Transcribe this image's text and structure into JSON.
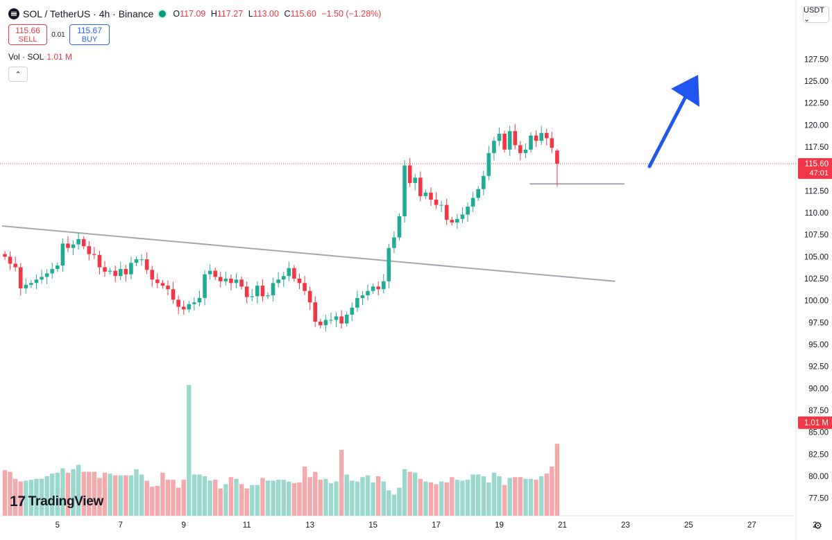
{
  "header": {
    "symbol": "SOL / TetherUS · 4h · Binance",
    "ohlc": [
      {
        "k": "O",
        "v": "117.09"
      },
      {
        "k": "H",
        "v": "117.27"
      },
      {
        "k": "L",
        "v": "113.00"
      },
      {
        "k": "C",
        "v": "115.60"
      }
    ],
    "change": "−1.50 (−1.28%)"
  },
  "trade": {
    "sell_price": "115.66",
    "sell_label": "SELL",
    "spread": "0.01",
    "buy_price": "115.67",
    "buy_label": "BUY"
  },
  "volume_indicator": {
    "label": "Vol · SOL",
    "value": "1.01 M"
  },
  "collapse_symbol": "⌃",
  "currency": "USDT ⌄",
  "logo_text": "TradingView",
  "logo_mark": "17",
  "settings_icon": "⚙",
  "colors": {
    "up": "#22ab94",
    "down": "#f23645",
    "vol_up": "#9ad8ce",
    "vol_down": "#f6a9ad",
    "arrow": "#2155ef"
  },
  "chart_data": {
    "type": "candlestick",
    "y_axis": {
      "ticks": [
        "127.50",
        "125.00",
        "122.50",
        "120.00",
        "117.50",
        "115.00",
        "112.50",
        "110.00",
        "107.50",
        "105.00",
        "102.50",
        "100.00",
        "97.50",
        "95.00",
        "92.50",
        "90.00",
        "87.50",
        "85.00",
        "82.50",
        "80.00",
        "77.50"
      ],
      "range": [
        75.5,
        129.5
      ]
    },
    "x_axis": {
      "ticks": [
        {
          "label": "5",
          "bar": 10
        },
        {
          "label": "7",
          "bar": 22
        },
        {
          "label": "9",
          "bar": 34
        },
        {
          "label": "11",
          "bar": 46
        },
        {
          "label": "13",
          "bar": 58
        },
        {
          "label": "15",
          "bar": 70
        },
        {
          "label": "17",
          "bar": 82
        },
        {
          "label": "19",
          "bar": 94
        },
        {
          "label": "21",
          "bar": 106
        },
        {
          "label": "23",
          "bar": 118
        },
        {
          "label": "25",
          "bar": 130
        },
        {
          "label": "27",
          "bar": 142
        },
        {
          "label": "2",
          "bar": 154
        }
      ]
    },
    "last_price": {
      "value": "115.60",
      "countdown": "47:01"
    },
    "volume_badge": "1.01 M",
    "closes": [
      105.0,
      104.2,
      103.8,
      101.4,
      101.8,
      102.0,
      102.4,
      102.7,
      103.1,
      103.6,
      104.0,
      106.5,
      106.0,
      106.4,
      107.0,
      106.2,
      105.3,
      105.2,
      103.8,
      103.3,
      103.4,
      102.8,
      103.6,
      103.0,
      104.3,
      104.7,
      104.7,
      103.5,
      102.4,
      102.0,
      101.7,
      101.3,
      100.1,
      99.3,
      99.0,
      99.6,
      99.8,
      100.3,
      103.0,
      103.4,
      102.7,
      102.2,
      102.5,
      102.0,
      102.4,
      101.6,
      100.4,
      100.5,
      101.7,
      100.5,
      100.6,
      102.0,
      102.4,
      102.8,
      103.7,
      102.5,
      102.0,
      101.1,
      99.8,
      97.6,
      97.2,
      97.8,
      97.8,
      98.2,
      97.4,
      98.4,
      99.2,
      100.3,
      100.6,
      101.1,
      101.6,
      101.3,
      102.2,
      106.0,
      107.2,
      109.6,
      115.4,
      113.4,
      114.0,
      111.9,
      112.3,
      111.5,
      110.9,
      110.9,
      109.2,
      108.9,
      109.3,
      109.8,
      110.7,
      111.7,
      112.7,
      114.2,
      116.8,
      118.2,
      119.0,
      117.2,
      119.3,
      117.7,
      116.8,
      117.2,
      118.8,
      118.2,
      119.1,
      118.5,
      117.4,
      115.6
    ],
    "volumes": [
      80.7,
      80.5,
      79.7,
      79.4,
      79.5,
      79.6,
      79.7,
      79.7,
      80.0,
      80.3,
      80.4,
      80.9,
      80.4,
      80.8,
      81.3,
      80.5,
      80.5,
      80.5,
      79.8,
      80.4,
      80.3,
      80.1,
      80.1,
      80.1,
      80.1,
      80.8,
      80.2,
      79.5,
      78.8,
      78.9,
      80.4,
      79.6,
      79.6,
      78.7,
      79.6,
      90.4,
      80.2,
      80.2,
      80.0,
      79.5,
      79.6,
      78.6,
      79.1,
      79.9,
      79.7,
      79.1,
      78.6,
      79.0,
      79.0,
      79.8,
      79.5,
      79.5,
      79.6,
      79.6,
      79.4,
      79.2,
      79.3,
      81.1,
      79.9,
      80.5,
      79.6,
      79.7,
      79.2,
      79.4,
      83.0,
      80.2,
      79.5,
      79.4,
      79.9,
      80.1,
      79.3,
      80.0,
      79.4,
      78.4,
      77.9,
      78.7,
      80.8,
      80.5,
      80.4,
      79.7,
      79.4,
      79.3,
      79.1,
      79.4,
      79.3,
      79.9,
      79.6,
      79.5,
      79.6,
      80.2,
      80.2,
      80.0,
      79.3,
      80.4,
      80.0,
      79.0,
      79.8,
      79.9,
      79.9,
      79.7,
      79.7,
      79.6,
      80.0,
      80.3,
      81.1,
      83.7
    ],
    "trend_line": {
      "from": {
        "bar": 0,
        "price": 108.5
      },
      "to": {
        "bar": 116,
        "price": 102.2
      }
    },
    "support_line": {
      "from": {
        "bar": 99,
        "price": 113.3
      },
      "to": {
        "bar": 117,
        "price": 113.3
      }
    }
  }
}
